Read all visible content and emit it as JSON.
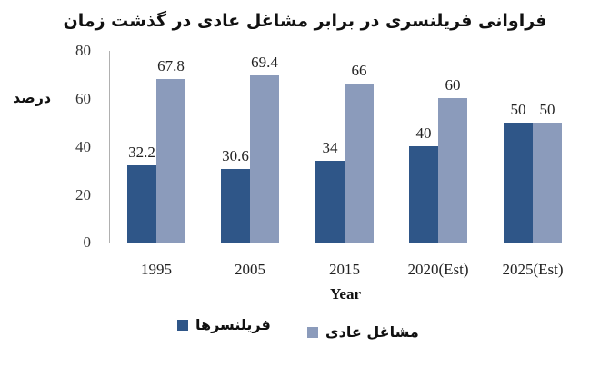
{
  "chart_data": {
    "type": "bar",
    "title": "فراوانی فریلنسری در برابر مشاغل عادی در گذشت زمان",
    "xlabel": "Year",
    "ylabel": "درصد",
    "ylim": [
      0,
      80
    ],
    "yticks": [
      "0",
      "20",
      "40",
      "60",
      "80"
    ],
    "grid": false,
    "legend_position": "bottom",
    "categories": [
      "1995",
      "2005",
      "2015",
      "2020(Est)",
      "2025(Est)"
    ],
    "series": [
      {
        "name": "فریلنسرها",
        "color": "#2f5688",
        "values": [
          32.2,
          30.6,
          34,
          40,
          50
        ],
        "labels": [
          "32.2",
          "30.6",
          "34",
          "40",
          "50"
        ]
      },
      {
        "name": "مشاغل عادی",
        "color": "#8b9bbb",
        "values": [
          67.8,
          69.4,
          66,
          60,
          50
        ],
        "labels": [
          "67.8",
          "69.4",
          "66",
          "60",
          "50"
        ]
      }
    ]
  }
}
